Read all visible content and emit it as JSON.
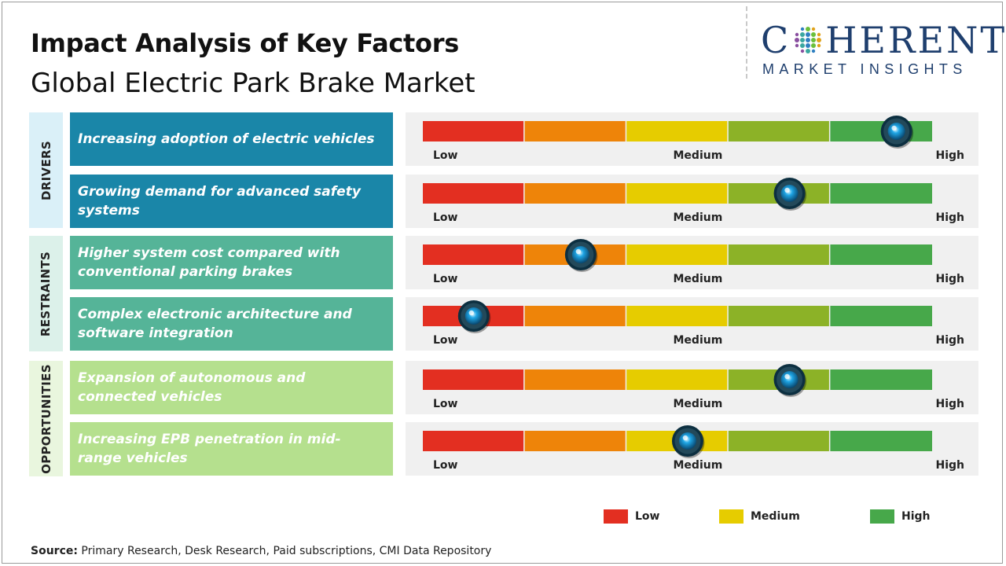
{
  "header": {
    "title": "Impact Analysis of Key Factors",
    "subtitle": "Global Electric Park Brake Market"
  },
  "logo": {
    "main_prefix": "C",
    "main_suffix": "HERENT",
    "sub": "MARKET INSIGHTS",
    "color": "#1f3f6e"
  },
  "categories": [
    {
      "key": "drivers",
      "label": "DRIVERS"
    },
    {
      "key": "restraints",
      "label": "RESTRAINTS"
    },
    {
      "key": "opportunities",
      "label": "OPPORTUNITIES"
    }
  ],
  "scale": {
    "low_label": "Low",
    "medium_label": "Medium",
    "high_label": "High",
    "segment_colors": [
      "#e32f21",
      "#ee8409",
      "#e6cc00",
      "#8cb227",
      "#47a84a"
    ],
    "marker_color": "#1fa6e6"
  },
  "chart_data": {
    "type": "gauge",
    "scale_range": [
      0,
      1
    ],
    "levels": [
      "Low",
      "Medium",
      "High"
    ],
    "factors": [
      {
        "category": "DRIVERS",
        "label": "Increasing adoption of electric vehicles",
        "impact": 0.93
      },
      {
        "category": "DRIVERS",
        "label": "Growing demand for advanced safety systems",
        "impact": 0.72
      },
      {
        "category": "RESTRAINTS",
        "label": "Higher system cost compared with conventional parking brakes",
        "impact": 0.31
      },
      {
        "category": "RESTRAINTS",
        "label": "Complex electronic architecture and software integration",
        "impact": 0.1
      },
      {
        "category": "OPPORTUNITIES",
        "label": "Expansion of autonomous and connected vehicles",
        "impact": 0.72
      },
      {
        "category": "OPPORTUNITIES",
        "label": "Increasing EPB penetration in mid-range vehicles",
        "impact": 0.52
      }
    ]
  },
  "legend": [
    {
      "label": "Low",
      "color": "#e32f21"
    },
    {
      "label": "Medium",
      "color": "#e6cc00"
    },
    {
      "label": "High",
      "color": "#47a84a"
    }
  ],
  "source": {
    "label": "Source:",
    "text": "Primary Research, Desk Research, Paid subscriptions, CMI Data Repository"
  }
}
